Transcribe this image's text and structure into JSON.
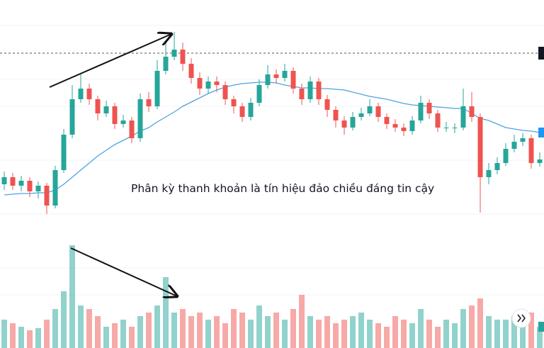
{
  "chart_data": {
    "type": "candlestick",
    "annotation": "Phân kỳ thanh khoản là tín hiệu đảo chiều đáng tin cậy",
    "open": [
      70,
      80,
      68,
      75,
      60,
      68,
      40,
      90,
      140,
      190,
      205,
      190,
      170,
      180,
      155,
      160,
      135,
      190,
      180,
      230,
      250,
      260,
      240,
      220,
      205,
      215,
      210,
      190,
      180,
      165,
      185,
      210,
      225,
      220,
      230,
      205,
      190,
      215,
      190,
      175,
      160,
      150,
      165,
      170,
      180,
      165,
      155,
      150,
      145,
      160,
      185,
      170,
      150,
      150,
      150,
      180,
      165,
      80,
      90,
      100,
      120,
      130,
      135,
      100
    ],
    "high": [
      88,
      86,
      82,
      80,
      74,
      72,
      96,
      148,
      210,
      225,
      212,
      195,
      188,
      185,
      168,
      165,
      198,
      200,
      245,
      270,
      285,
      270,
      248,
      228,
      222,
      222,
      215,
      195,
      185,
      192,
      218,
      238,
      232,
      240,
      235,
      212,
      222,
      220,
      196,
      180,
      166,
      172,
      178,
      190,
      185,
      170,
      162,
      156,
      166,
      195,
      190,
      175,
      158,
      156,
      205,
      200,
      170,
      100,
      108,
      128,
      140,
      142,
      140,
      115
    ],
    "low": [
      62,
      62,
      60,
      52,
      50,
      28,
      36,
      86,
      135,
      185,
      182,
      160,
      165,
      148,
      150,
      128,
      130,
      172,
      176,
      225,
      245,
      230,
      212,
      196,
      198,
      200,
      182,
      170,
      158,
      160,
      180,
      205,
      212,
      215,
      198,
      182,
      185,
      182,
      165,
      150,
      140,
      146,
      160,
      166,
      158,
      148,
      144,
      138,
      140,
      156,
      162,
      144,
      144,
      142,
      146,
      158,
      30,
      70,
      84,
      96,
      115,
      124,
      92,
      95
    ],
    "close": [
      80,
      68,
      75,
      60,
      68,
      40,
      90,
      140,
      190,
      205,
      190,
      170,
      180,
      155,
      160,
      135,
      190,
      180,
      230,
      250,
      260,
      240,
      220,
      205,
      215,
      210,
      190,
      180,
      165,
      185,
      210,
      225,
      220,
      230,
      205,
      190,
      215,
      190,
      175,
      160,
      150,
      165,
      170,
      180,
      165,
      155,
      150,
      145,
      160,
      185,
      170,
      150,
      150,
      150,
      180,
      165,
      80,
      90,
      100,
      120,
      130,
      135,
      100,
      105
    ],
    "volume": [
      40,
      35,
      30,
      25,
      28,
      40,
      55,
      80,
      145,
      60,
      55,
      45,
      30,
      35,
      40,
      30,
      45,
      50,
      60,
      100,
      50,
      55,
      45,
      50,
      40,
      45,
      35,
      55,
      50,
      40,
      60,
      45,
      50,
      40,
      55,
      75,
      45,
      40,
      45,
      35,
      40,
      45,
      50,
      40,
      35,
      30,
      45,
      40,
      35,
      55,
      40,
      30,
      40,
      35,
      55,
      60,
      70,
      45,
      40,
      40,
      45,
      35,
      50,
      30
    ],
    "ma": {
      "color": "#4fa3e0",
      "values": [
        55,
        56,
        57,
        57,
        58,
        58,
        62,
        70,
        80,
        90,
        100,
        110,
        118,
        126,
        132,
        138,
        145,
        150,
        158,
        165,
        172,
        180,
        186,
        192,
        198,
        203,
        207,
        210,
        212,
        213,
        214,
        214,
        213,
        210,
        208,
        206,
        206,
        205,
        205,
        204,
        203,
        200,
        197,
        194,
        192,
        190,
        187,
        184,
        182,
        181,
        180,
        179,
        178,
        177,
        177,
        170,
        163,
        160,
        155,
        150,
        148,
        146,
        145,
        143
      ]
    },
    "up_color": "#26a69a",
    "down_color": "#ef5350",
    "ylim": [
      0,
      330
    ],
    "volume_ylim": [
      0,
      160
    ],
    "price_line": 255
  }
}
